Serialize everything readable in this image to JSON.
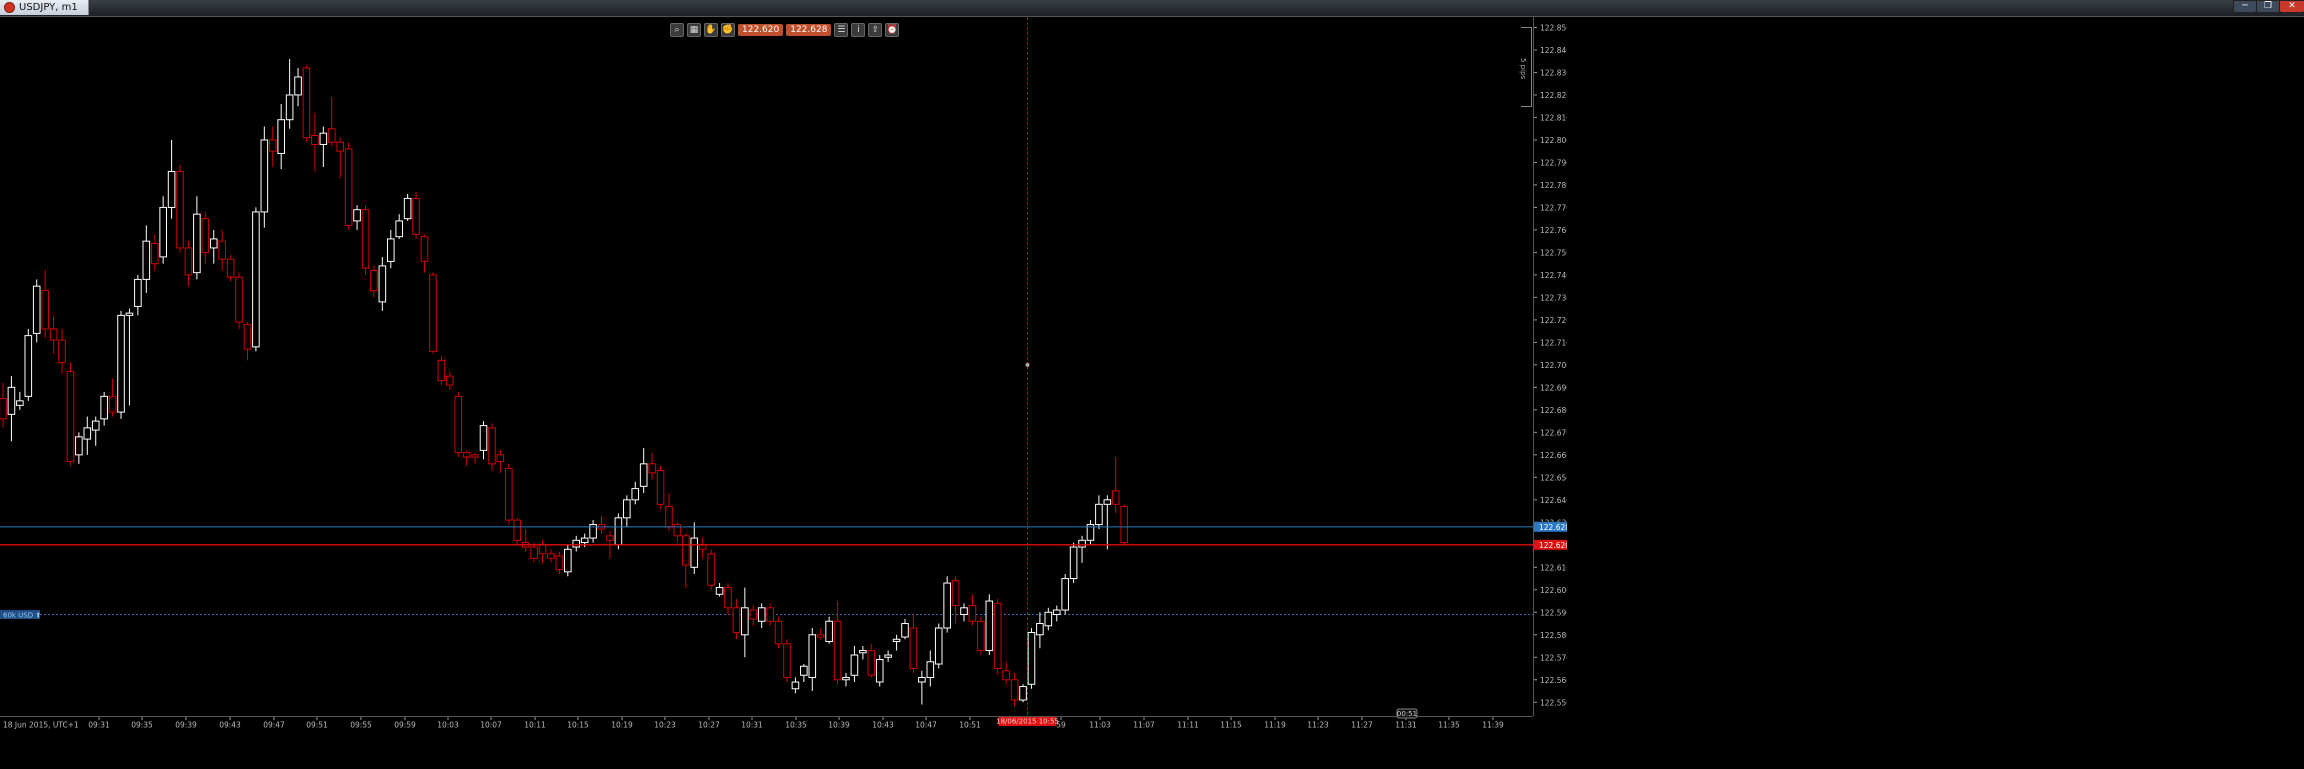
{
  "window": {
    "title": "USDJPY, m1",
    "controls": [
      "minimize",
      "restore",
      "close"
    ]
  },
  "toolbar": {
    "icons": [
      "zoom-icon",
      "template-icon",
      "hand-icon",
      "hand-stop-icon"
    ],
    "bid_price": "122.620",
    "ask_price": "122.628",
    "right_icons": [
      "objects-icon",
      "info-icon",
      "share-icon",
      "alarm-icon"
    ]
  },
  "side_label": "5 pips",
  "chart_data": {
    "type": "candlestick",
    "symbol": "USDJPY",
    "timeframe": "m1",
    "y_ticks": [
      "122.850",
      "122.840",
      "122.830",
      "122.820",
      "122.810",
      "122.800",
      "122.790",
      "122.780",
      "122.770",
      "122.760",
      "122.750",
      "122.740",
      "122.730",
      "122.720",
      "122.710",
      "122.700",
      "122.690",
      "122.680",
      "122.670",
      "122.660",
      "122.650",
      "122.640",
      "122.630",
      "122.620",
      "122.610",
      "122.600",
      "122.590",
      "122.580",
      "122.570",
      "122.560",
      "122.550"
    ],
    "ylim": [
      122.547,
      122.852
    ],
    "x_ticks": [
      "18 Jun 2015, UTC+1",
      "09:31",
      "09:35",
      "09:39",
      "09:43",
      "09:47",
      "09:51",
      "09:55",
      "09:59",
      "10:03",
      "10:07",
      "10:11",
      "10:15",
      "10:19",
      "10:23",
      "10:27",
      "10:31",
      "10:35",
      "10:39",
      "10:43",
      "10:47",
      "10:51",
      "59",
      "11:03",
      "11:07",
      "11:11",
      "11:15",
      "11:19",
      "11:23",
      "11:27",
      "11:31",
      "11:35",
      "11:39"
    ],
    "crosshair_time_label": "18/06/2015 10:55",
    "countdown_label": "00:51",
    "bid_line": 122.62,
    "ask_line": 122.628,
    "bid_label": "122.620",
    "ask_label": "122.628",
    "position_label": "60k USD ⬆",
    "position_price": 122.589,
    "candles": [
      {
        "o": 122.685,
        "h": 122.692,
        "l": 122.672,
        "c": 122.676
      },
      {
        "o": 122.678,
        "h": 122.695,
        "l": 122.666,
        "c": 122.69
      },
      {
        "o": 122.682,
        "h": 122.688,
        "l": 122.68,
        "c": 122.684
      },
      {
        "o": 122.686,
        "h": 122.716,
        "l": 122.684,
        "c": 122.713
      },
      {
        "o": 122.714,
        "h": 122.738,
        "l": 122.71,
        "c": 122.735
      },
      {
        "o": 122.733,
        "h": 122.742,
        "l": 122.712,
        "c": 122.716
      },
      {
        "o": 122.716,
        "h": 122.722,
        "l": 122.705,
        "c": 122.711
      },
      {
        "o": 122.711,
        "h": 122.716,
        "l": 122.696,
        "c": 122.701
      },
      {
        "o": 122.697,
        "h": 122.701,
        "l": 122.655,
        "c": 122.657
      },
      {
        "o": 122.66,
        "h": 122.67,
        "l": 122.656,
        "c": 122.668
      },
      {
        "o": 122.667,
        "h": 122.677,
        "l": 122.66,
        "c": 122.672
      },
      {
        "o": 122.671,
        "h": 122.677,
        "l": 122.664,
        "c": 122.675
      },
      {
        "o": 122.676,
        "h": 122.688,
        "l": 122.673,
        "c": 122.686
      },
      {
        "o": 122.686,
        "h": 122.694,
        "l": 122.677,
        "c": 122.679
      },
      {
        "o": 122.679,
        "h": 122.724,
        "l": 122.676,
        "c": 122.722
      },
      {
        "o": 122.722,
        "h": 122.725,
        "l": 122.682,
        "c": 122.723
      },
      {
        "o": 122.726,
        "h": 122.74,
        "l": 122.722,
        "c": 122.738
      },
      {
        "o": 122.738,
        "h": 122.762,
        "l": 122.732,
        "c": 122.755
      },
      {
        "o": 122.754,
        "h": 122.758,
        "l": 122.742,
        "c": 122.745
      },
      {
        "o": 122.748,
        "h": 122.775,
        "l": 122.745,
        "c": 122.77
      },
      {
        "o": 122.77,
        "h": 122.8,
        "l": 122.765,
        "c": 122.786
      },
      {
        "o": 122.786,
        "h": 122.789,
        "l": 122.75,
        "c": 122.752
      },
      {
        "o": 122.752,
        "h": 122.755,
        "l": 122.735,
        "c": 122.74
      },
      {
        "o": 122.741,
        "h": 122.775,
        "l": 122.738,
        "c": 122.767
      },
      {
        "o": 122.765,
        "h": 122.768,
        "l": 122.745,
        "c": 122.75
      },
      {
        "o": 122.752,
        "h": 122.76,
        "l": 122.745,
        "c": 122.756
      },
      {
        "o": 122.755,
        "h": 122.76,
        "l": 122.742,
        "c": 122.747
      },
      {
        "o": 122.747,
        "h": 122.749,
        "l": 122.737,
        "c": 122.739
      },
      {
        "o": 122.739,
        "h": 122.741,
        "l": 122.716,
        "c": 122.719
      },
      {
        "o": 122.718,
        "h": 122.719,
        "l": 122.702,
        "c": 122.707
      },
      {
        "o": 122.708,
        "h": 122.77,
        "l": 122.706,
        "c": 122.768
      },
      {
        "o": 122.768,
        "h": 122.806,
        "l": 122.761,
        "c": 122.8
      },
      {
        "o": 122.8,
        "h": 122.806,
        "l": 122.788,
        "c": 122.795
      },
      {
        "o": 122.794,
        "h": 122.816,
        "l": 122.787,
        "c": 122.809
      },
      {
        "o": 122.809,
        "h": 122.836,
        "l": 122.805,
        "c": 122.82
      },
      {
        "o": 122.82,
        "h": 122.832,
        "l": 122.815,
        "c": 122.828
      },
      {
        "o": 122.832,
        "h": 122.833,
        "l": 122.799,
        "c": 122.801
      },
      {
        "o": 122.802,
        "h": 122.812,
        "l": 122.786,
        "c": 122.798
      },
      {
        "o": 122.798,
        "h": 122.806,
        "l": 122.788,
        "c": 122.803
      },
      {
        "o": 122.805,
        "h": 122.819,
        "l": 122.797,
        "c": 122.799
      },
      {
        "o": 122.799,
        "h": 122.801,
        "l": 122.783,
        "c": 122.795
      },
      {
        "o": 122.796,
        "h": 122.799,
        "l": 122.76,
        "c": 122.762
      },
      {
        "o": 122.764,
        "h": 122.771,
        "l": 122.76,
        "c": 122.769
      },
      {
        "o": 122.769,
        "h": 122.771,
        "l": 122.74,
        "c": 122.743
      },
      {
        "o": 122.742,
        "h": 122.744,
        "l": 122.73,
        "c": 122.733
      },
      {
        "o": 122.728,
        "h": 122.748,
        "l": 122.724,
        "c": 122.744
      },
      {
        "o": 122.746,
        "h": 122.76,
        "l": 122.743,
        "c": 122.756
      },
      {
        "o": 122.757,
        "h": 122.767,
        "l": 122.756,
        "c": 122.764
      },
      {
        "o": 122.765,
        "h": 122.776,
        "l": 122.764,
        "c": 122.774
      },
      {
        "o": 122.774,
        "h": 122.777,
        "l": 122.756,
        "c": 122.758
      },
      {
        "o": 122.757,
        "h": 122.758,
        "l": 122.741,
        "c": 122.746
      },
      {
        "o": 122.74,
        "h": 122.741,
        "l": 122.705,
        "c": 122.706
      },
      {
        "o": 122.702,
        "h": 122.704,
        "l": 122.691,
        "c": 122.693
      },
      {
        "o": 122.695,
        "h": 122.697,
        "l": 122.689,
        "c": 122.691
      },
      {
        "o": 122.686,
        "h": 122.688,
        "l": 122.659,
        "c": 122.661
      },
      {
        "o": 122.661,
        "h": 122.662,
        "l": 122.655,
        "c": 122.659
      },
      {
        "o": 122.66,
        "h": 122.661,
        "l": 122.656,
        "c": 122.659
      },
      {
        "o": 122.662,
        "h": 122.675,
        "l": 122.658,
        "c": 122.673
      },
      {
        "o": 122.672,
        "h": 122.674,
        "l": 122.653,
        "c": 122.656
      },
      {
        "o": 122.66,
        "h": 122.662,
        "l": 122.652,
        "c": 122.657
      },
      {
        "o": 122.654,
        "h": 122.656,
        "l": 122.629,
        "c": 122.631
      },
      {
        "o": 122.631,
        "h": 122.632,
        "l": 122.62,
        "c": 122.622
      },
      {
        "o": 122.621,
        "h": 122.627,
        "l": 122.617,
        "c": 122.619
      },
      {
        "o": 122.619,
        "h": 122.621,
        "l": 122.612,
        "c": 122.614
      },
      {
        "o": 122.62,
        "h": 122.622,
        "l": 122.612,
        "c": 122.616
      },
      {
        "o": 122.616,
        "h": 122.618,
        "l": 122.612,
        "c": 122.614
      },
      {
        "o": 122.615,
        "h": 122.617,
        "l": 122.607,
        "c": 122.609
      },
      {
        "o": 122.608,
        "h": 122.62,
        "l": 122.606,
        "c": 122.618
      },
      {
        "o": 122.619,
        "h": 122.624,
        "l": 122.617,
        "c": 122.622
      },
      {
        "o": 122.621,
        "h": 122.625,
        "l": 122.619,
        "c": 122.623
      },
      {
        "o": 122.623,
        "h": 122.631,
        "l": 122.621,
        "c": 122.629
      },
      {
        "o": 122.629,
        "h": 122.633,
        "l": 122.625,
        "c": 122.627
      },
      {
        "o": 122.624,
        "h": 122.626,
        "l": 122.614,
        "c": 122.622
      },
      {
        "o": 122.62,
        "h": 122.634,
        "l": 122.618,
        "c": 122.632
      },
      {
        "o": 122.632,
        "h": 122.642,
        "l": 122.628,
        "c": 122.64
      },
      {
        "o": 122.64,
        "h": 122.648,
        "l": 122.638,
        "c": 122.645
      },
      {
        "o": 122.646,
        "h": 122.663,
        "l": 122.643,
        "c": 122.656
      },
      {
        "o": 122.656,
        "h": 122.661,
        "l": 122.649,
        "c": 122.652
      },
      {
        "o": 122.653,
        "h": 122.655,
        "l": 122.636,
        "c": 122.638
      },
      {
        "o": 122.637,
        "h": 122.643,
        "l": 122.626,
        "c": 122.628
      },
      {
        "o": 122.629,
        "h": 122.63,
        "l": 122.621,
        "c": 122.624
      },
      {
        "o": 122.624,
        "h": 122.625,
        "l": 122.601,
        "c": 122.611
      },
      {
        "o": 122.61,
        "h": 122.63,
        "l": 122.607,
        "c": 122.623
      },
      {
        "o": 122.62,
        "h": 122.623,
        "l": 122.614,
        "c": 122.618
      },
      {
        "o": 122.616,
        "h": 122.618,
        "l": 122.6,
        "c": 122.602
      },
      {
        "o": 122.598,
        "h": 122.603,
        "l": 122.597,
        "c": 122.601
      },
      {
        "o": 122.601,
        "h": 122.603,
        "l": 122.589,
        "c": 122.592
      },
      {
        "o": 122.592,
        "h": 122.596,
        "l": 122.578,
        "c": 122.581
      },
      {
        "o": 122.58,
        "h": 122.601,
        "l": 122.57,
        "c": 122.592
      },
      {
        "o": 122.591,
        "h": 122.593,
        "l": 122.584,
        "c": 122.587
      },
      {
        "o": 122.586,
        "h": 122.594,
        "l": 122.583,
        "c": 122.592
      },
      {
        "o": 122.592,
        "h": 122.594,
        "l": 122.584,
        "c": 122.586
      },
      {
        "o": 122.586,
        "h": 122.588,
        "l": 122.574,
        "c": 122.576
      },
      {
        "o": 122.576,
        "h": 122.578,
        "l": 122.559,
        "c": 122.561
      },
      {
        "o": 122.556,
        "h": 122.561,
        "l": 122.554,
        "c": 122.559
      },
      {
        "o": 122.562,
        "h": 122.567,
        "l": 122.559,
        "c": 122.566
      },
      {
        "o": 122.561,
        "h": 122.583,
        "l": 122.555,
        "c": 122.58
      },
      {
        "o": 122.58,
        "h": 122.583,
        "l": 122.578,
        "c": 122.579
      },
      {
        "o": 122.577,
        "h": 122.588,
        "l": 122.576,
        "c": 122.586
      },
      {
        "o": 122.586,
        "h": 122.595,
        "l": 122.558,
        "c": 122.56
      },
      {
        "o": 122.56,
        "h": 122.563,
        "l": 122.557,
        "c": 122.561
      },
      {
        "o": 122.562,
        "h": 122.575,
        "l": 122.559,
        "c": 122.571
      },
      {
        "o": 122.572,
        "h": 122.575,
        "l": 122.569,
        "c": 122.573
      },
      {
        "o": 122.573,
        "h": 122.576,
        "l": 122.561,
        "c": 122.562
      },
      {
        "o": 122.559,
        "h": 122.571,
        "l": 122.557,
        "c": 122.569
      },
      {
        "o": 122.57,
        "h": 122.573,
        "l": 122.568,
        "c": 122.571
      },
      {
        "o": 122.577,
        "h": 122.58,
        "l": 122.573,
        "c": 122.578
      },
      {
        "o": 122.579,
        "h": 122.587,
        "l": 122.578,
        "c": 122.585
      },
      {
        "o": 122.583,
        "h": 122.589,
        "l": 122.563,
        "c": 122.565
      },
      {
        "o": 122.559,
        "h": 122.564,
        "l": 122.549,
        "c": 122.561
      },
      {
        "o": 122.561,
        "h": 122.573,
        "l": 122.557,
        "c": 122.568
      },
      {
        "o": 122.567,
        "h": 122.585,
        "l": 122.565,
        "c": 122.583
      },
      {
        "o": 122.583,
        "h": 122.606,
        "l": 122.581,
        "c": 122.603
      },
      {
        "o": 122.604,
        "h": 122.606,
        "l": 122.585,
        "c": 122.593
      },
      {
        "o": 122.589,
        "h": 122.594,
        "l": 122.586,
        "c": 122.592
      },
      {
        "o": 122.593,
        "h": 122.598,
        "l": 122.584,
        "c": 122.586
      },
      {
        "o": 122.586,
        "h": 122.588,
        "l": 122.571,
        "c": 122.573
      },
      {
        "o": 122.573,
        "h": 122.598,
        "l": 122.571,
        "c": 122.595
      },
      {
        "o": 122.594,
        "h": 122.596,
        "l": 122.562,
        "c": 122.565
      },
      {
        "o": 122.564,
        "h": 122.568,
        "l": 122.558,
        "c": 122.56
      },
      {
        "o": 122.56,
        "h": 122.563,
        "l": 122.548,
        "c": 122.551
      },
      {
        "o": 122.551,
        "h": 122.558,
        "l": 122.55,
        "c": 122.557
      },
      {
        "o": 122.558,
        "h": 122.583,
        "l": 122.556,
        "c": 122.581
      },
      {
        "o": 122.58,
        "h": 122.59,
        "l": 122.574,
        "c": 122.585
      },
      {
        "o": 122.584,
        "h": 122.592,
        "l": 122.582,
        "c": 122.59
      },
      {
        "o": 122.589,
        "h": 122.593,
        "l": 122.586,
        "c": 122.591
      },
      {
        "o": 122.591,
        "h": 122.607,
        "l": 122.589,
        "c": 122.605
      },
      {
        "o": 122.605,
        "h": 122.621,
        "l": 122.603,
        "c": 122.619
      },
      {
        "o": 122.619,
        "h": 122.624,
        "l": 122.612,
        "c": 122.622
      },
      {
        "o": 122.622,
        "h": 122.631,
        "l": 122.62,
        "c": 122.629
      },
      {
        "o": 122.629,
        "h": 122.642,
        "l": 122.627,
        "c": 122.638
      },
      {
        "o": 122.638,
        "h": 122.642,
        "l": 122.618,
        "c": 122.64
      },
      {
        "o": 122.644,
        "h": 122.659,
        "l": 122.634,
        "c": 122.638
      },
      {
        "o": 122.637,
        "h": 122.638,
        "l": 122.62,
        "c": 122.621
      }
    ]
  }
}
